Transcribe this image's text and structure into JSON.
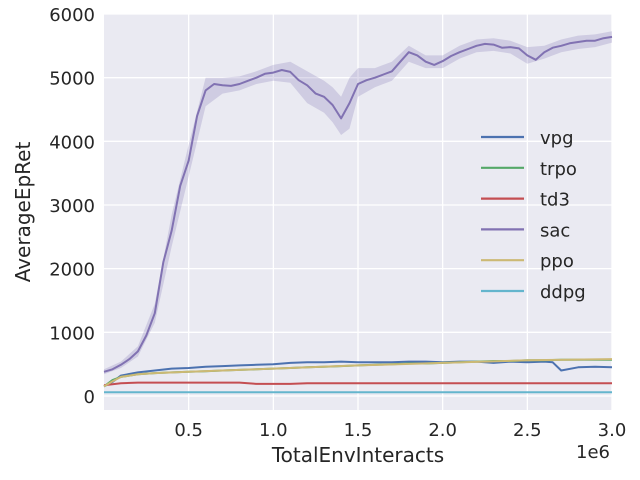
{
  "chart_data": {
    "type": "line",
    "xlabel": "TotalEnvInteracts",
    "ylabel": "AverageEpRet",
    "x_offset_label": "1e6",
    "xlim": [
      0,
      3000000
    ],
    "ylim": [
      -220,
      6000
    ],
    "x_ticks": [
      500000,
      1000000,
      1500000,
      2000000,
      2500000,
      3000000
    ],
    "x_tick_labels": [
      "0.5",
      "1.0",
      "1.5",
      "2.0",
      "2.5",
      "3.0"
    ],
    "y_ticks": [
      0,
      1000,
      2000,
      3000,
      4000,
      5000,
      6000
    ],
    "y_tick_labels": [
      "0",
      "1000",
      "2000",
      "3000",
      "4000",
      "5000",
      "6000"
    ],
    "grid": true,
    "legend_position": "right",
    "series": [
      {
        "name": "vpg",
        "color": "#4c72b0",
        "points": [
          [
            0,
            150
          ],
          [
            50000,
            220
          ],
          [
            100000,
            320
          ],
          [
            200000,
            370
          ],
          [
            300000,
            400
          ],
          [
            400000,
            430
          ],
          [
            500000,
            440
          ],
          [
            600000,
            460
          ],
          [
            700000,
            470
          ],
          [
            800000,
            480
          ],
          [
            900000,
            490
          ],
          [
            1000000,
            500
          ],
          [
            1100000,
            520
          ],
          [
            1200000,
            530
          ],
          [
            1300000,
            530
          ],
          [
            1400000,
            540
          ],
          [
            1500000,
            530
          ],
          [
            1600000,
            530
          ],
          [
            1700000,
            530
          ],
          [
            1800000,
            540
          ],
          [
            1900000,
            540
          ],
          [
            2000000,
            530
          ],
          [
            2100000,
            540
          ],
          [
            2200000,
            540
          ],
          [
            2300000,
            520
          ],
          [
            2400000,
            540
          ],
          [
            2500000,
            530
          ],
          [
            2600000,
            540
          ],
          [
            2650000,
            530
          ],
          [
            2700000,
            400
          ],
          [
            2800000,
            450
          ],
          [
            2900000,
            460
          ],
          [
            3000000,
            450
          ]
        ],
        "band": null
      },
      {
        "name": "trpo",
        "color": "#55a868",
        "points": [
          [
            0,
            150
          ],
          [
            50000,
            250
          ],
          [
            100000,
            300
          ],
          [
            200000,
            340
          ],
          [
            300000,
            360
          ],
          [
            400000,
            370
          ],
          [
            500000,
            380
          ],
          [
            600000,
            390
          ],
          [
            700000,
            400
          ],
          [
            800000,
            410
          ],
          [
            900000,
            420
          ],
          [
            1000000,
            430
          ],
          [
            1100000,
            440
          ],
          [
            1200000,
            450
          ],
          [
            1300000,
            460
          ],
          [
            1400000,
            470
          ],
          [
            1500000,
            480
          ],
          [
            1600000,
            490
          ],
          [
            1700000,
            500
          ],
          [
            1800000,
            510
          ],
          [
            1900000,
            510
          ],
          [
            2000000,
            520
          ],
          [
            2100000,
            530
          ],
          [
            2200000,
            540
          ],
          [
            2300000,
            550
          ],
          [
            2400000,
            550
          ],
          [
            2500000,
            560
          ],
          [
            2600000,
            560
          ],
          [
            2700000,
            570
          ],
          [
            2800000,
            570
          ],
          [
            2900000,
            570
          ],
          [
            3000000,
            570
          ]
        ],
        "band": null
      },
      {
        "name": "td3",
        "color": "#c44e52",
        "points": [
          [
            0,
            170
          ],
          [
            100000,
            200
          ],
          [
            200000,
            210
          ],
          [
            300000,
            210
          ],
          [
            400000,
            210
          ],
          [
            500000,
            210
          ],
          [
            600000,
            210
          ],
          [
            700000,
            210
          ],
          [
            800000,
            210
          ],
          [
            900000,
            190
          ],
          [
            1000000,
            190
          ],
          [
            1100000,
            190
          ],
          [
            1200000,
            200
          ],
          [
            1500000,
            200
          ],
          [
            2000000,
            200
          ],
          [
            2500000,
            200
          ],
          [
            3000000,
            200
          ]
        ],
        "band": null
      },
      {
        "name": "sac",
        "color": "#8172b2",
        "points": [
          [
            0,
            380
          ],
          [
            50000,
            420
          ],
          [
            100000,
            490
          ],
          [
            150000,
            580
          ],
          [
            200000,
            700
          ],
          [
            250000,
            950
          ],
          [
            300000,
            1300
          ],
          [
            350000,
            2100
          ],
          [
            400000,
            2600
          ],
          [
            450000,
            3300
          ],
          [
            500000,
            3700
          ],
          [
            550000,
            4400
          ],
          [
            600000,
            4800
          ],
          [
            650000,
            4900
          ],
          [
            700000,
            4880
          ],
          [
            750000,
            4870
          ],
          [
            800000,
            4900
          ],
          [
            850000,
            4950
          ],
          [
            900000,
            5000
          ],
          [
            950000,
            5060
          ],
          [
            1000000,
            5080
          ],
          [
            1050000,
            5120
          ],
          [
            1100000,
            5090
          ],
          [
            1150000,
            4960
          ],
          [
            1200000,
            4880
          ],
          [
            1250000,
            4750
          ],
          [
            1300000,
            4700
          ],
          [
            1350000,
            4570
          ],
          [
            1400000,
            4360
          ],
          [
            1450000,
            4600
          ],
          [
            1500000,
            4900
          ],
          [
            1550000,
            4960
          ],
          [
            1600000,
            5000
          ],
          [
            1650000,
            5050
          ],
          [
            1700000,
            5100
          ],
          [
            1750000,
            5250
          ],
          [
            1800000,
            5400
          ],
          [
            1850000,
            5350
          ],
          [
            1900000,
            5250
          ],
          [
            1950000,
            5200
          ],
          [
            2000000,
            5260
          ],
          [
            2050000,
            5340
          ],
          [
            2100000,
            5400
          ],
          [
            2150000,
            5450
          ],
          [
            2200000,
            5500
          ],
          [
            2250000,
            5530
          ],
          [
            2300000,
            5520
          ],
          [
            2350000,
            5470
          ],
          [
            2400000,
            5480
          ],
          [
            2450000,
            5460
          ],
          [
            2500000,
            5350
          ],
          [
            2550000,
            5280
          ],
          [
            2600000,
            5400
          ],
          [
            2650000,
            5470
          ],
          [
            2700000,
            5500
          ],
          [
            2750000,
            5540
          ],
          [
            2800000,
            5560
          ],
          [
            2850000,
            5580
          ],
          [
            2900000,
            5580
          ],
          [
            2950000,
            5620
          ],
          [
            3000000,
            5640
          ]
        ],
        "band": [
          [
            0,
            340,
            420
          ],
          [
            100000,
            440,
            540
          ],
          [
            200000,
            620,
            780
          ],
          [
            300000,
            1150,
            1450
          ],
          [
            400000,
            2350,
            2850
          ],
          [
            500000,
            3450,
            3950
          ],
          [
            600000,
            4550,
            5000
          ],
          [
            700000,
            4750,
            5000
          ],
          [
            800000,
            4800,
            5020
          ],
          [
            900000,
            4900,
            5100
          ],
          [
            1000000,
            4950,
            5200
          ],
          [
            1100000,
            4920,
            5250
          ],
          [
            1200000,
            4600,
            5100
          ],
          [
            1300000,
            4450,
            4950
          ],
          [
            1350000,
            4300,
            4850
          ],
          [
            1400000,
            4100,
            4700
          ],
          [
            1450000,
            4200,
            5000
          ],
          [
            1500000,
            4700,
            5150
          ],
          [
            1600000,
            4850,
            5150
          ],
          [
            1700000,
            4950,
            5250
          ],
          [
            1800000,
            5250,
            5500
          ],
          [
            1900000,
            5150,
            5350
          ],
          [
            2000000,
            5150,
            5350
          ],
          [
            2100000,
            5300,
            5500
          ],
          [
            2200000,
            5400,
            5600
          ],
          [
            2300000,
            5420,
            5620
          ],
          [
            2400000,
            5380,
            5580
          ],
          [
            2500000,
            5220,
            5480
          ],
          [
            2600000,
            5300,
            5500
          ],
          [
            2700000,
            5400,
            5600
          ],
          [
            2800000,
            5450,
            5660
          ],
          [
            2900000,
            5480,
            5680
          ],
          [
            3000000,
            5550,
            5730
          ]
        ]
      },
      {
        "name": "ppo",
        "color": "#ccb974",
        "points": [
          [
            0,
            150
          ],
          [
            50000,
            230
          ],
          [
            100000,
            300
          ],
          [
            200000,
            340
          ],
          [
            300000,
            360
          ],
          [
            500000,
            380
          ],
          [
            800000,
            410
          ],
          [
            1000000,
            430
          ],
          [
            1500000,
            480
          ],
          [
            2000000,
            520
          ],
          [
            2500000,
            560
          ],
          [
            3000000,
            580
          ]
        ],
        "band": null
      },
      {
        "name": "ddpg",
        "color": "#64b5cd",
        "points": [
          [
            0,
            60
          ],
          [
            500000,
            60
          ],
          [
            1000000,
            60
          ],
          [
            1500000,
            60
          ],
          [
            2000000,
            60
          ],
          [
            2500000,
            60
          ],
          [
            3000000,
            60
          ]
        ],
        "band": null
      }
    ]
  }
}
